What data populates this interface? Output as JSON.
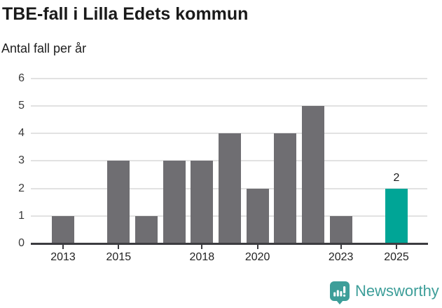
{
  "header": {
    "title": "TBE-fall i Lilla Edets kommun",
    "subtitle": "Antal fall per år"
  },
  "chart_data": {
    "type": "bar",
    "title": "TBE-fall i Lilla Edets kommun",
    "subtitle": "Antal fall per år",
    "categories": [
      2013,
      2014,
      2015,
      2016,
      2017,
      2018,
      2019,
      2020,
      2021,
      2022,
      2023,
      2024,
      2025
    ],
    "values": [
      1,
      0,
      3,
      1,
      3,
      3,
      4,
      2,
      4,
      5,
      1,
      0,
      2
    ],
    "highlight_category": 2025,
    "highlight_value_label": "2",
    "ylim": [
      0,
      6
    ],
    "yticks": [
      0,
      1,
      2,
      3,
      4,
      5,
      6
    ],
    "xticks": [
      2013,
      2015,
      2018,
      2020,
      2023,
      2025
    ],
    "grid": true,
    "legend": "none",
    "colors": {
      "bar": "#6f6e72",
      "highlight": "#00a596",
      "grid": "#e2e2e2",
      "axis": "#3c3c40",
      "text": "#1a1a1a"
    }
  },
  "footer": {
    "brand": "Newsworthy",
    "logo_color": "#3d9e99",
    "logo_icon": "newsworthy-logo-icon"
  }
}
